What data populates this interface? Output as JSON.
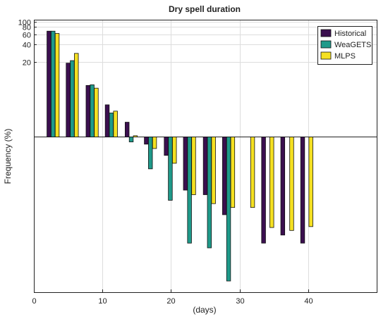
{
  "chart_data": {
    "type": "bar",
    "title": "Dry spell duration",
    "xlabel": "(days)",
    "ylabel": "Frequency (%)",
    "xlim": [
      0,
      50
    ],
    "x_ticks": [
      "0",
      "10",
      "20",
      "30",
      "40"
    ],
    "y_scale": "log",
    "y_tick_labels": [
      "100",
      "80",
      "60",
      "40",
      "20"
    ],
    "y_tick_values": [
      100,
      80,
      60,
      40,
      20
    ],
    "grid": true,
    "legend_position": "top-right",
    "series": [
      {
        "name": "Historical",
        "color": "#3b0f4f",
        "points": [
          {
            "x": 2.2,
            "y": 68
          },
          {
            "x": 5,
            "y": 19
          },
          {
            "x": 7.9,
            "y": 7.8
          },
          {
            "x": 10.7,
            "y": 3.6
          },
          {
            "x": 13.6,
            "y": 1.8
          },
          {
            "x": 16.4,
            "y": 0.75
          },
          {
            "x": 19.3,
            "y": 0.48
          },
          {
            "x": 22.1,
            "y": 0.12
          },
          {
            "x": 25,
            "y": 0.1
          },
          {
            "x": 27.8,
            "y": 0.045
          },
          {
            "x": 33.5,
            "y": 0.0145
          },
          {
            "x": 36.3,
            "y": 0.02
          },
          {
            "x": 39.2,
            "y": 0.0145
          }
        ]
      },
      {
        "name": "WeaGETS",
        "color": "#1f9a8a",
        "points": [
          {
            "x": 2.8,
            "y": 68
          },
          {
            "x": 5.6,
            "y": 21
          },
          {
            "x": 8.5,
            "y": 8
          },
          {
            "x": 11.3,
            "y": 2.6
          },
          {
            "x": 14.2,
            "y": 0.82
          },
          {
            "x": 17,
            "y": 0.28
          },
          {
            "x": 19.9,
            "y": 0.08
          },
          {
            "x": 22.7,
            "y": 0.0145
          },
          {
            "x": 25.6,
            "y": 0.012
          },
          {
            "x": 28.4,
            "y": 0.0032
          }
        ]
      },
      {
        "name": "MLPS",
        "color": "#f5e022",
        "points": [
          {
            "x": 3.4,
            "y": 62
          },
          {
            "x": 6.2,
            "y": 28
          },
          {
            "x": 9.1,
            "y": 7
          },
          {
            "x": 11.9,
            "y": 2.8
          },
          {
            "x": 14.8,
            "y": 1.05
          },
          {
            "x": 17.6,
            "y": 0.63
          },
          {
            "x": 20.5,
            "y": 0.35
          },
          {
            "x": 23.3,
            "y": 0.1
          },
          {
            "x": 26.2,
            "y": 0.07
          },
          {
            "x": 29,
            "y": 0.06
          },
          {
            "x": 31.9,
            "y": 0.06
          },
          {
            "x": 34.7,
            "y": 0.027
          },
          {
            "x": 37.6,
            "y": 0.024
          },
          {
            "x": 40.4,
            "y": 0.028
          }
        ]
      }
    ]
  }
}
